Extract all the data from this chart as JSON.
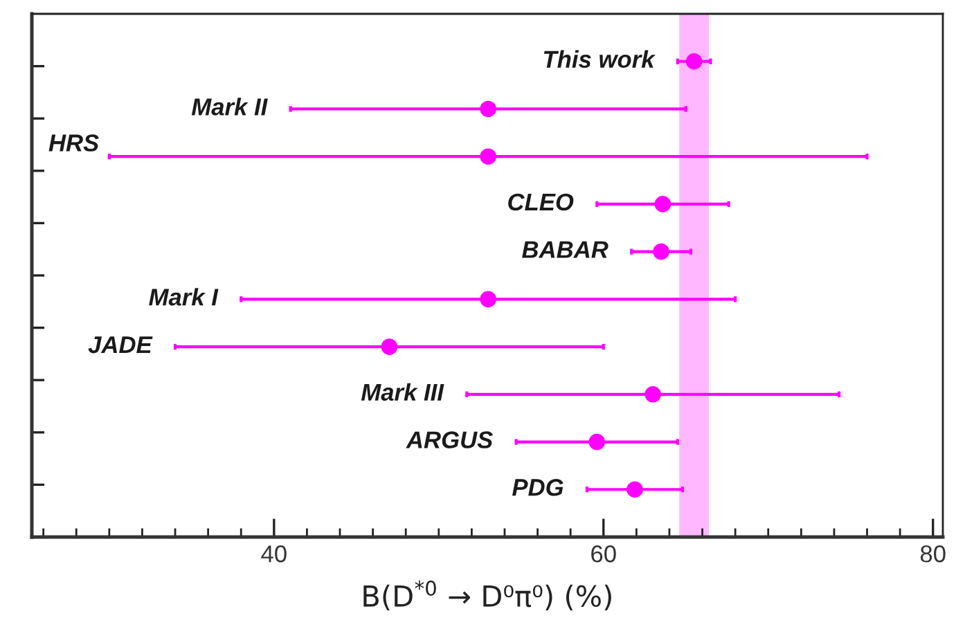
{
  "chart_data": {
    "type": "scatter",
    "orientation": "horizontal",
    "xlabel": "B(D$^{*0}$ → D⁰π⁰) (%)",
    "categories": [
      "This work",
      "Mark II",
      "HRS",
      "CLEO",
      "BABAR",
      "Mark I",
      "JADE",
      "Mark III",
      "ARGUS",
      "PDG"
    ],
    "values": [
      65.5,
      53.0,
      53.0,
      63.6,
      63.5,
      53.0,
      47.0,
      63.0,
      59.6,
      61.9
    ],
    "errors": [
      [
        64.5,
        66.5
      ],
      [
        41.0,
        65.0
      ],
      [
        30.0,
        76.0
      ],
      [
        59.6,
        67.6
      ],
      [
        61.7,
        65.3
      ],
      [
        38.0,
        68.0
      ],
      [
        34.0,
        60.0
      ],
      [
        51.7,
        74.3
      ],
      [
        54.7,
        64.5
      ],
      [
        59.0,
        64.8
      ]
    ],
    "color": "#ff00ff",
    "marker": "circle",
    "xlim": [
      25.3,
      80.6
    ],
    "xticks": [
      {
        "value": 26,
        "label": null
      },
      {
        "value": 28,
        "label": null
      },
      {
        "value": 30,
        "label": null
      },
      {
        "value": 32,
        "label": null
      },
      {
        "value": 34,
        "label": null
      },
      {
        "value": 36,
        "label": null
      },
      {
        "value": 38,
        "label": null
      },
      40,
      {
        "value": 42,
        "label": null
      },
      {
        "value": 44,
        "label": null
      },
      {
        "value": 46,
        "label": null
      },
      {
        "value": 48,
        "label": null
      },
      {
        "value": 50,
        "label": null
      },
      {
        "value": 52,
        "label": null
      },
      {
        "value": 54,
        "label": null
      },
      {
        "value": 56,
        "label": null
      },
      {
        "value": 58,
        "label": null
      },
      60,
      {
        "value": 62,
        "label": null
      },
      {
        "value": 64,
        "label": null
      },
      {
        "value": 66,
        "label": null
      },
      {
        "value": 68,
        "label": null
      },
      {
        "value": 70,
        "label": null
      },
      {
        "value": 72,
        "label": null
      },
      {
        "value": 74,
        "label": null
      },
      {
        "value": 76,
        "label": null
      },
      {
        "value": 78,
        "label": null
      },
      80
    ],
    "bands": [
      {
        "axis": "x",
        "from": 64.6,
        "to": 66.4,
        "color": "#ff00ff"
      }
    ],
    "grid": false,
    "legend": false
  }
}
